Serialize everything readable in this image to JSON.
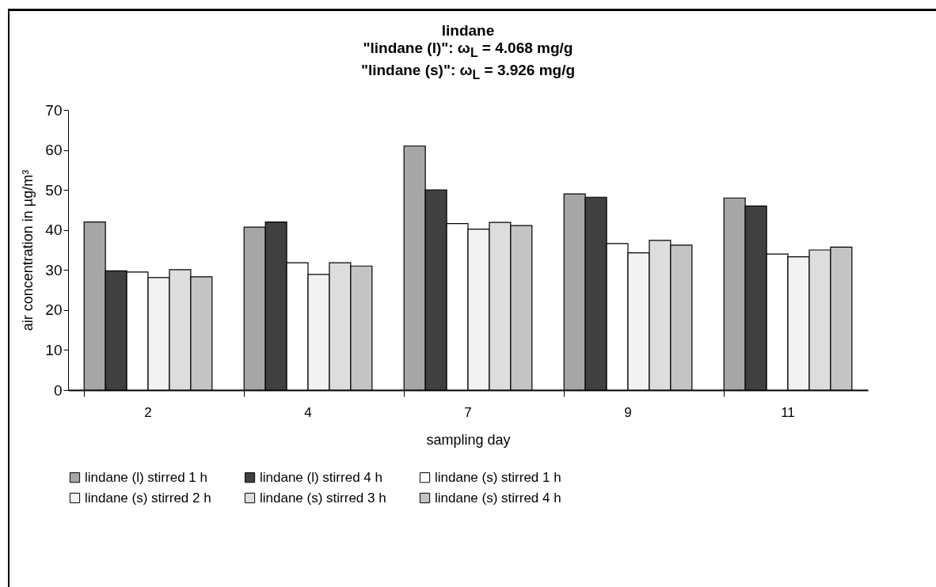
{
  "chart_data": {
    "type": "bar",
    "title": "lindane\n\"lindane (l)\": ω$_{L}$ = 4.068 mg/g\n\"lindane (s)\": ω$_{L}$ = 3.926 mg/g",
    "xlabel": "sampling day",
    "ylabel": "air concentration in µg/m³",
    "categories": [
      "2",
      "4",
      "7",
      "9",
      "11"
    ],
    "series": [
      {
        "name": "lindane (l) stirred 1 h",
        "color": "#a6a6a6",
        "values": [
          42,
          40.7,
          61,
          49,
          48
        ]
      },
      {
        "name": "lindane (l) stirred 4 h",
        "color": "#404040",
        "values": [
          29.8,
          42,
          50,
          48.2,
          46
        ]
      },
      {
        "name": "lindane (s) stirred 1 h",
        "color": "#ffffff",
        "values": [
          29.5,
          31.8,
          41.6,
          36.6,
          34
        ]
      },
      {
        "name": "lindane (s) stirred 2 h",
        "color": "#f2f2f2",
        "values": [
          28.1,
          28.9,
          40.2,
          34.3,
          33.3
        ]
      },
      {
        "name": "lindane (s) stirred 3 h",
        "color": "#dddddd",
        "values": [
          30.1,
          31.8,
          41.9,
          37.4,
          35
        ]
      },
      {
        "name": "lindane (s) stirred 4 h",
        "color": "#c4c4c4",
        "values": [
          28.3,
          31,
          41.1,
          36.2,
          35.7
        ]
      }
    ],
    "ylim": [
      0,
      70
    ],
    "yticks": [
      0,
      10,
      20,
      30,
      40,
      50,
      60,
      70
    ],
    "grid": false,
    "legend": "bottom"
  }
}
